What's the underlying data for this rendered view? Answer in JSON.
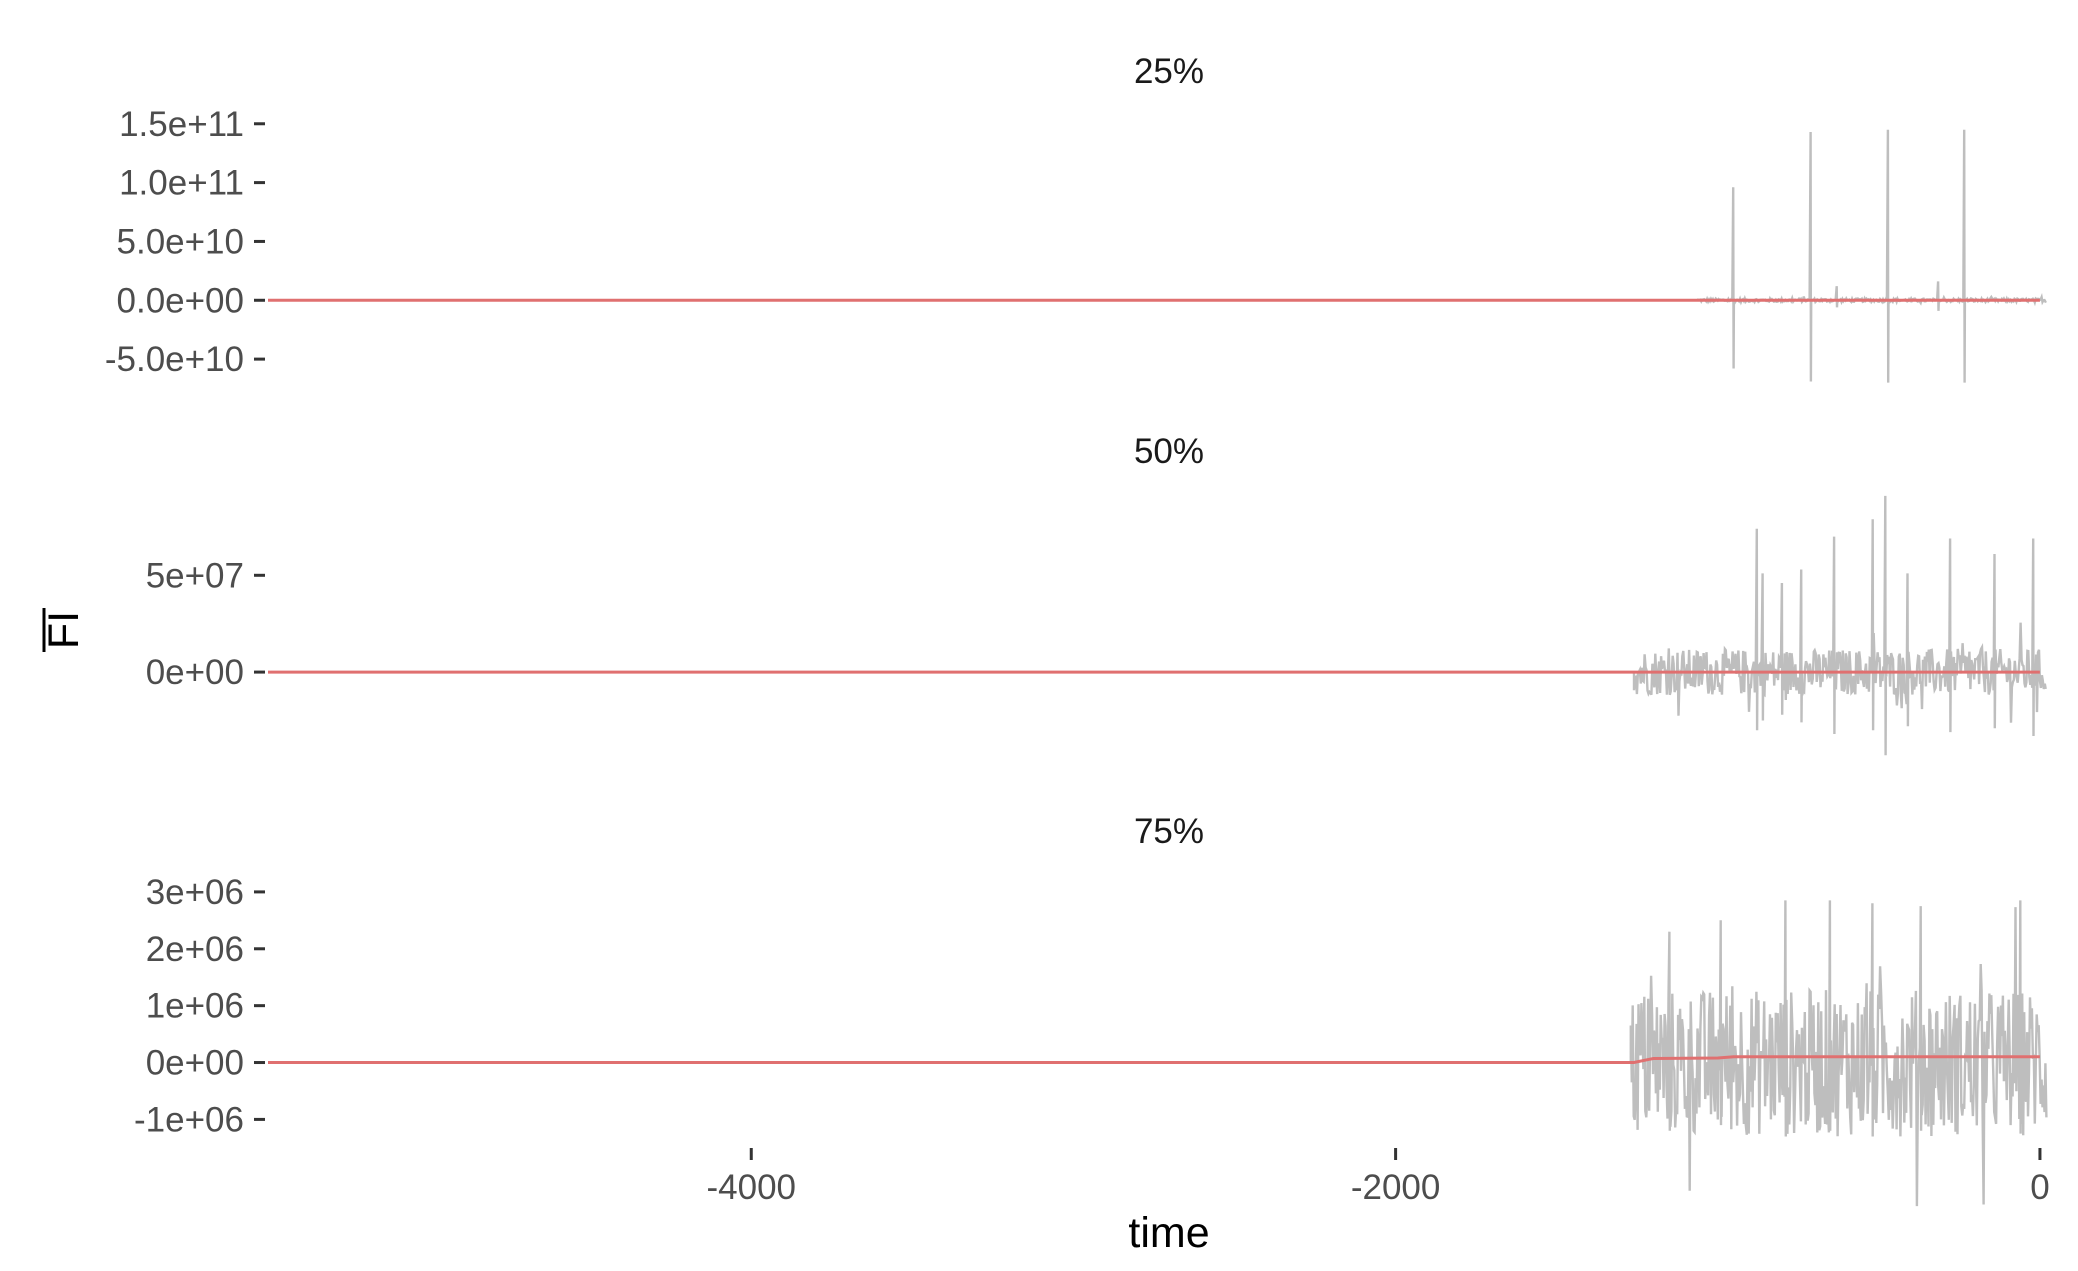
{
  "chart_data": {
    "type": "line",
    "xlabel": "time",
    "ylabel": "FI",
    "ylabel_overline": true,
    "xlim": [
      -5500,
      25
    ],
    "x_ticks": [
      {
        "value": -4000,
        "label": "-4000"
      },
      {
        "value": -2000,
        "label": "-2000"
      },
      {
        "value": 0,
        "label": "0"
      }
    ],
    "grid": false,
    "series_colors": {
      "raw": "#bebebe",
      "mean": "#e07070"
    },
    "panels": [
      {
        "title": "25%",
        "ylim": [
          -72000000000.0,
          160000000000.0
        ],
        "y_ticks": [
          {
            "value": 150000000000.0,
            "label": "1.5e+11"
          },
          {
            "value": 100000000000.0,
            "label": "1.0e+11"
          },
          {
            "value": 50000000000.0,
            "label": "5.0e+10"
          },
          {
            "value": 0,
            "label": "0.0e+00"
          },
          {
            "value": -50000000000.0,
            "label": "-5.0e+10"
          }
        ],
        "noise_start": -1060,
        "noise_amplitude": 1500000000.0,
        "spikes": [
          {
            "x": -950,
            "high": 96000000000.0,
            "low": -58000000000.0
          },
          {
            "x": -710,
            "high": 143000000000.0,
            "low": -69000000000.0
          },
          {
            "x": -630,
            "high": 12000000000.0,
            "low": -6000000000.0
          },
          {
            "x": -470,
            "high": 145000000000.0,
            "low": -70000000000.0
          },
          {
            "x": -315,
            "high": 16000000000.0,
            "low": -9000000000.0
          },
          {
            "x": -235,
            "high": 145000000000.0,
            "low": -70000000000.0
          }
        ],
        "mean_line": [
          {
            "x": -5500,
            "y": 0
          },
          {
            "x": 0,
            "y": 0
          }
        ]
      },
      {
        "title": "50%",
        "ylim": [
          -48000000.0,
          92000000.0
        ],
        "y_ticks": [
          {
            "value": 50000000.0,
            "label": "5e+07"
          },
          {
            "value": 0,
            "label": "0e+00"
          }
        ],
        "noise_start": -1260,
        "noise_amplitude": 12000000.0,
        "spikes": [
          {
            "x": -880,
            "high": 74000000.0,
            "low": -30000000.0
          },
          {
            "x": -860,
            "high": 51000000.0,
            "low": -25000000.0
          },
          {
            "x": -800,
            "high": 46000000.0,
            "low": -22000000.0
          },
          {
            "x": -740,
            "high": 53000000.0,
            "low": -26000000.0
          },
          {
            "x": -640,
            "high": 70000000.0,
            "low": -32000000.0
          },
          {
            "x": -520,
            "high": 79000000.0,
            "low": -30000000.0
          },
          {
            "x": -480,
            "high": 91000000.0,
            "low": -43000000.0
          },
          {
            "x": -410,
            "high": 51000000.0,
            "low": -28000000.0
          },
          {
            "x": -280,
            "high": 69000000.0,
            "low": -31000000.0
          },
          {
            "x": -140,
            "high": 61000000.0,
            "low": -29000000.0
          },
          {
            "x": -20,
            "high": 69000000.0,
            "low": -33000000.0
          }
        ],
        "mean_line": [
          {
            "x": -5500,
            "y": 0
          },
          {
            "x": 0,
            "y": 0
          }
        ]
      },
      {
        "title": "75%",
        "ylim": [
          -1450000.0,
          3350000.0
        ],
        "y_ticks": [
          {
            "value": 3000000.0,
            "label": "3e+06"
          },
          {
            "value": 2000000.0,
            "label": "2e+06"
          },
          {
            "value": 1000000.0,
            "label": "1e+06"
          },
          {
            "value": 0,
            "label": "0e+00"
          },
          {
            "value": -1000000.0,
            "label": "-1e+06"
          }
        ],
        "noise_start": -1270,
        "noise_amplitude": 1300000.0,
        "spikes": [
          {
            "x": -1150,
            "high": 2300000.0,
            "low": -1200000.0
          },
          {
            "x": -990,
            "high": 2500000.0,
            "low": -1100000.0
          },
          {
            "x": -790,
            "high": 2850000.0,
            "low": -1300000.0
          },
          {
            "x": -650,
            "high": 2850000.0,
            "low": -1200000.0
          },
          {
            "x": -520,
            "high": 2800000.0,
            "low": -1300000.0
          },
          {
            "x": -370,
            "high": 2750000.0,
            "low": -1200000.0
          },
          {
            "x": -60,
            "high": 2850000.0,
            "low": -1250000.0
          }
        ],
        "mean_line": [
          {
            "x": -5500,
            "y": 0
          },
          {
            "x": -1260,
            "y": 0
          },
          {
            "x": -1200,
            "y": 70000.0
          },
          {
            "x": -1000,
            "y": 80000.0
          },
          {
            "x": -950,
            "y": 100000.0
          },
          {
            "x": 0,
            "y": 100000.0
          }
        ]
      }
    ]
  }
}
